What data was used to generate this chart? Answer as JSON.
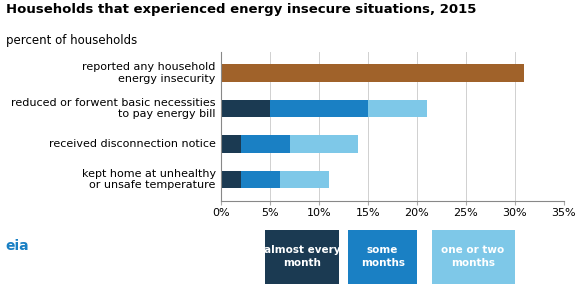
{
  "title": "Households that experienced energy insecure situations, 2015",
  "subtitle": "percent of households",
  "categories": [
    "reported any household\nenergy insecurity",
    "reduced or forwent basic necessities\nto pay energy bill",
    "received disconnection notice",
    "kept home at unhealthy\nor unsafe temperature"
  ],
  "single_bar_value": 31,
  "almost_every_month": [
    0,
    5,
    2,
    2
  ],
  "some_months": [
    0,
    10,
    5,
    4
  ],
  "one_or_two_months": [
    0,
    6,
    7,
    5
  ],
  "colors": {
    "single": "#a0622a",
    "almost": "#1b3a52",
    "some": "#1a80c4",
    "one_two": "#7ec8e8"
  },
  "legend_labels": [
    "almost every\nmonth",
    "some\nmonths",
    "one or two\nmonths"
  ],
  "xlim": [
    0,
    35
  ],
  "xticks": [
    0,
    5,
    10,
    15,
    20,
    25,
    30,
    35
  ],
  "xtick_labels": [
    "0%",
    "5%",
    "10%",
    "15%",
    "20%",
    "25%",
    "30%",
    "35%"
  ],
  "title_fontsize": 9.5,
  "subtitle_fontsize": 8.5,
  "tick_fontsize": 8,
  "label_fontsize": 8,
  "bar_height": 0.5
}
